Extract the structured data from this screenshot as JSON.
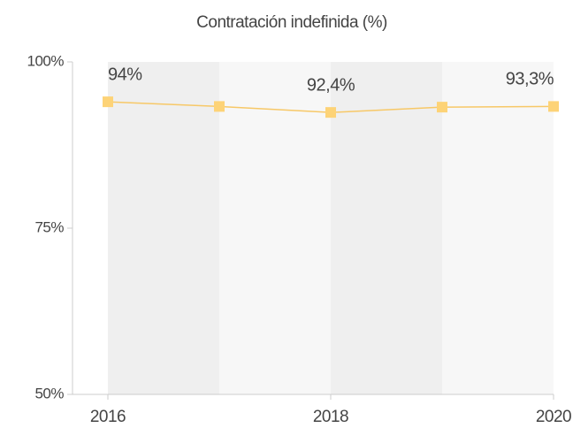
{
  "chart_data": {
    "type": "line",
    "title": "Contratación indefinida (%)",
    "x": [
      2016,
      2017,
      2018,
      2019,
      2020
    ],
    "series": [
      {
        "name": null,
        "color": "#f7c867",
        "values": [
          94,
          93.3,
          92.4,
          93.2,
          93.3
        ],
        "value_labels": [
          "94%",
          null,
          "92,4%",
          null,
          "93,3%"
        ]
      }
    ],
    "xlim": [
      2016,
      2020
    ],
    "xticks": [
      2016,
      2018,
      2020
    ],
    "ylim": [
      50,
      100
    ],
    "yticks": [
      {
        "value": 50,
        "label": "50%"
      },
      {
        "value": 75,
        "label": "75%"
      },
      {
        "value": 100,
        "label": "100%"
      }
    ]
  }
}
